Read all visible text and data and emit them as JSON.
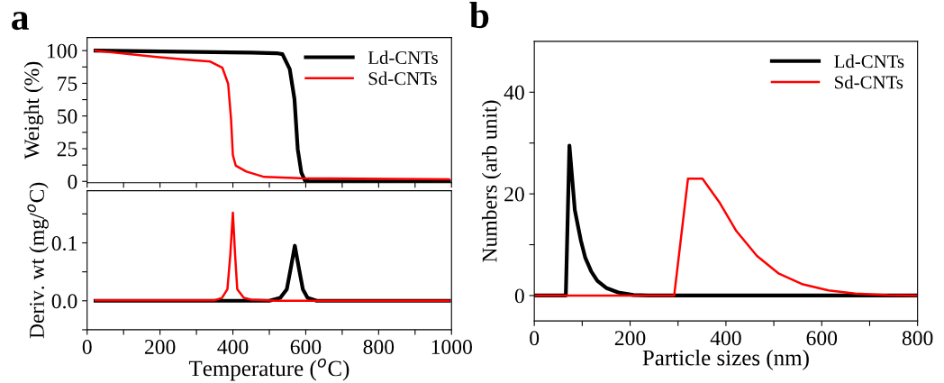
{
  "chart_data": [
    {
      "type": "line",
      "ylabel": "Weight (%)",
      "annotations": [
        "a"
      ],
      "xlim": [
        0,
        1000
      ],
      "ylim": [
        -1,
        110
      ],
      "tick_labels": "y",
      "legend": "top right",
      "grid": false,
      "xticks": [
        0,
        {
          "value": 100,
          "label": null
        },
        200,
        {
          "value": 300,
          "label": null
        },
        400,
        {
          "value": 500,
          "label": null
        },
        600,
        {
          "value": 700,
          "label": null
        },
        800,
        {
          "value": 900,
          "label": null
        },
        1000
      ],
      "yticks": [
        0,
        {
          "value": 12.5,
          "label": null
        },
        25,
        {
          "value": 37.5,
          "label": null
        },
        50,
        {
          "value": 62.5,
          "label": null
        },
        75,
        {
          "value": 87.5,
          "label": null
        },
        100
      ],
      "series": [
        {
          "name": "Ld-CNTs",
          "color": "#000000",
          "x": [
            23,
            300,
            450,
            520,
            536,
            556,
            569,
            578,
            588,
            598,
            610,
            993
          ],
          "values": [
            100,
            99,
            98.5,
            98,
            97.3,
            85.9,
            63,
            24.5,
            6.6,
            0.5,
            0,
            0
          ]
        },
        {
          "name": "Sd-CNTs",
          "color": "#ff0000",
          "x": [
            23,
            198,
            297,
            338,
            371,
            387,
            395,
            400,
            408,
            437,
            486,
            585,
            993
          ],
          "values": [
            100,
            95,
            92.5,
            91.6,
            87,
            74.6,
            47.5,
            20,
            12,
            7.5,
            3.4,
            2.4,
            1.5
          ]
        }
      ]
    },
    {
      "type": "line",
      "xlabel": "Temperature ($^{o}$C)",
      "ylabel": "Deriv. wt (mg/$^{o}$C)",
      "xlim": [
        0,
        1000
      ],
      "ylim": [
        -0.05,
        0.19
      ],
      "grid": false,
      "xticks": [
        0,
        {
          "value": 100,
          "label": null
        },
        200,
        {
          "value": 300,
          "label": null
        },
        400,
        {
          "value": 500,
          "label": null
        },
        600,
        {
          "value": 700,
          "label": null
        },
        800,
        {
          "value": 900,
          "label": null
        },
        1000
      ],
      "yticks": [
        {
          "value": -0.05,
          "label": null
        },
        {
          "value": 0,
          "label": "0.0"
        },
        {
          "value": 0.05,
          "label": null
        },
        0.1,
        {
          "value": 0.15,
          "label": null
        }
      ],
      "series": [
        {
          "color": "#000000",
          "x": [
            23,
            500,
            530,
            548,
            560,
            570,
            580,
            592,
            605,
            630,
            993
          ],
          "values": [
            0,
            0,
            0.005,
            0.02,
            0.06,
            0.095,
            0.06,
            0.02,
            0.005,
            0,
            0
          ]
        },
        {
          "color": "#ff0000",
          "x": [
            23,
            350,
            370,
            385,
            393,
            400,
            406,
            412,
            430,
            450,
            520,
            993
          ],
          "values": [
            0.001,
            0.001,
            0.005,
            0.02,
            0.08,
            0.152,
            0.08,
            0.02,
            0.005,
            0.002,
            0,
            0
          ]
        }
      ]
    },
    {
      "type": "line",
      "xlabel": "Particle sizes (nm)",
      "ylabel": "Numbers (arb unit)",
      "annotations": [
        "b"
      ],
      "xlim": [
        0,
        800
      ],
      "ylim": [
        -5,
        50
      ],
      "legend": "top right",
      "grid": false,
      "xticks": [
        0,
        {
          "value": 100,
          "label": null
        },
        200,
        {
          "value": 300,
          "label": null
        },
        400,
        {
          "value": 500,
          "label": null
        },
        600,
        {
          "value": 700,
          "label": null
        },
        800
      ],
      "yticks": [
        0,
        {
          "value": 10,
          "label": null
        },
        20,
        {
          "value": 30,
          "label": null
        },
        40
      ],
      "series": [
        {
          "name": "Ld-CNTs",
          "color": "#000000",
          "x": [
            0,
            65.8,
            73.3,
            84.6,
            97,
            106.5,
            119,
            131.6,
            150,
            175,
            207,
            238,
            800
          ],
          "values": [
            0,
            0,
            29.5,
            16.8,
            10.9,
            7.4,
            4.7,
            2.9,
            1.5,
            0.6,
            0.1,
            0,
            0
          ]
        },
        {
          "name": "Sd-CNTs",
          "color": "#ff0000",
          "x": [
            0,
            292,
            320.8,
            351,
            386,
            421.6,
            464.8,
            510.6,
            560.7,
            614,
            670,
            739,
            800
          ],
          "values": [
            0,
            0,
            23,
            23,
            18.4,
            12.7,
            7.8,
            4.3,
            2.2,
            1.0,
            0.4,
            0.1,
            0
          ]
        }
      ]
    }
  ]
}
